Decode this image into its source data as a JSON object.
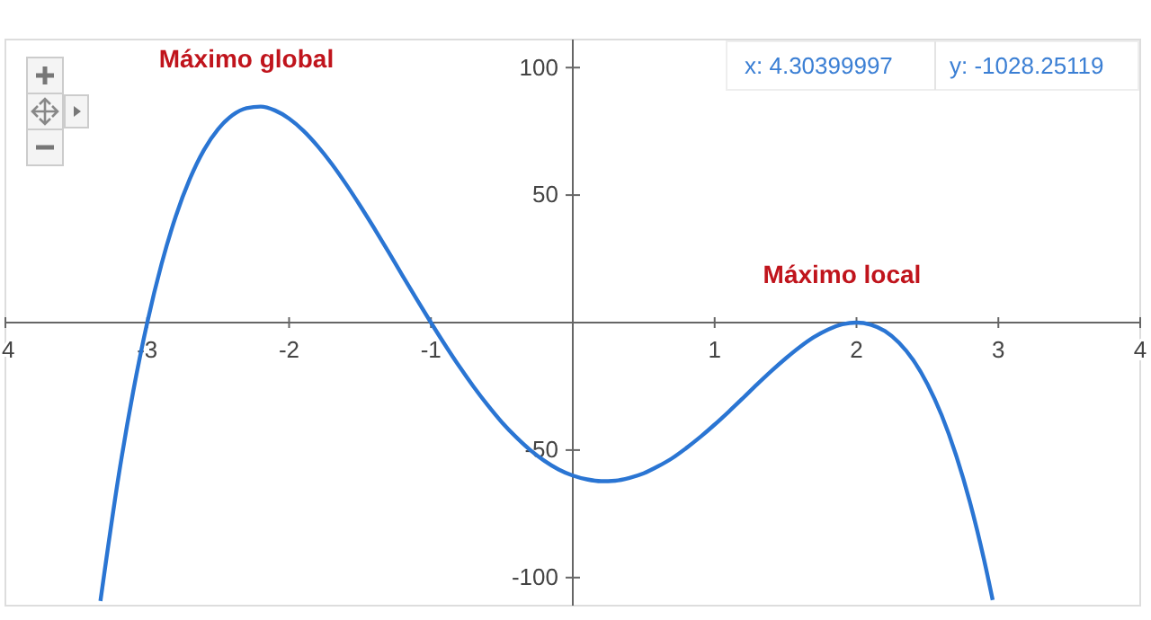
{
  "chart_data": {
    "type": "line",
    "x": [
      -3.33,
      -3.2,
      -3.1,
      -3.0,
      -2.9,
      -2.8,
      -2.7,
      -2.6,
      -2.5,
      -2.4,
      -2.3,
      -2.2,
      -2.1,
      -2.0,
      -1.9,
      -1.8,
      -1.7,
      -1.6,
      -1.5,
      -1.4,
      -1.3,
      -1.2,
      -1.1,
      -1.0,
      -0.9,
      -0.8,
      -0.7,
      -0.6,
      -0.5,
      -0.4,
      -0.3,
      -0.2,
      -0.1,
      0,
      0.1,
      0.2,
      0.3,
      0.4,
      0.5,
      0.6,
      0.7,
      0.8,
      0.9,
      1.0,
      1.1,
      1.2,
      1.3,
      1.4,
      1.5,
      1.6,
      1.7,
      1.8,
      1.9,
      2.0,
      2.1,
      2.2,
      2.3,
      2.4,
      2.5,
      2.6,
      2.7,
      2.8,
      2.9,
      2.96
    ],
    "series": [
      {
        "color": "#2a75d3",
        "values": [
          -109.2,
          -59.5,
          -27.3,
          0,
          22.8,
          41.5,
          56.3,
          67.7,
          75.9,
          81.3,
          84.1,
          84.7,
          83.2,
          80,
          75.3,
          69.3,
          62.3,
          54.4,
          45.9,
          37.0,
          27.8,
          18.4,
          9.1,
          0,
          -8.8,
          -17.2,
          -25.1,
          -32.4,
          -39.1,
          -44.9,
          -50.0,
          -54.2,
          -57.6,
          -60,
          -61.5,
          -62.2,
          -62.0,
          -60.9,
          -59.1,
          -56.4,
          -53.2,
          -49.2,
          -44.8,
          -40,
          -34.9,
          -29.6,
          -24.2,
          -19.0,
          -14.1,
          -9.6,
          -5.7,
          -2.7,
          -0.7,
          0,
          -0.8,
          -3.3,
          -7.9,
          -14.7,
          -24.1,
          -36.3,
          -51.7,
          -70.5,
          -93.2,
          -108.8
        ]
      }
    ],
    "xlim": [
      -4,
      4
    ],
    "ylim": [
      -111,
      111
    ],
    "xticks": [
      {
        "value": -4,
        "label": "4"
      },
      -3,
      -2,
      -1,
      1,
      2,
      3,
      4
    ],
    "yticks": [
      -100,
      -50,
      50,
      100
    ],
    "grid": false,
    "marker": "none",
    "line_style": "solid",
    "annotations": [
      {
        "text": "Máximo global",
        "x": -2.2,
        "y": 84.7
      },
      {
        "text": "Máximo local",
        "x": 2,
        "y": 0
      },
      "x: 4.30399997",
      "y: -1028.25119"
    ]
  }
}
